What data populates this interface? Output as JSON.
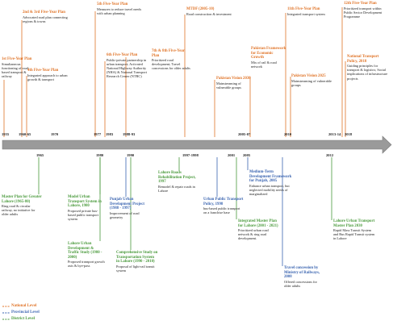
{
  "timeline_years": [
    "1955",
    "1960-65",
    "1970",
    "1977",
    "1983",
    "1988-93",
    "2005-07",
    "2010",
    "2013-14",
    "2018"
  ],
  "bottom_years": [
    "1965",
    "1980",
    "1990",
    "1997-1998",
    "2001",
    "2005",
    "2012"
  ],
  "national": [
    {
      "title": "1st Five-Year Plan",
      "desc": "Simultaneous functioning of road-based transport & railway"
    },
    {
      "title": "2nd & 3rd Five-Year Plan",
      "desc": "Advocated road plan connecting regions & towns"
    },
    {
      "title": "4th Five-Year Plan",
      "desc": "Integrated approach to urban growth & transport"
    },
    {
      "title": "5th Five-Year Plan",
      "desc": "Measures to reduce travel needs with urban planning"
    },
    {
      "title": "6th Five-Year Plan",
      "desc": "Public-private partnership in urban transport; Activated National Highway Authority (NHA) & National Transport Research Center (NTRC)"
    },
    {
      "title": "7th & 8th Five-Year Plan",
      "desc": "Prioritized road development; Travel concessions for older adults"
    },
    {
      "title": "MTDF (2005-10)",
      "desc": "Road construction & investment"
    },
    {
      "title": "Pakistan Vision 2030",
      "desc": "Mainstreaming of vulnerable groups"
    },
    {
      "title": "Pakistan Framework for Economic Growth",
      "desc": "Mix of rail & road network"
    },
    {
      "title": "11th Five-Year Plan",
      "desc": "Integrated transport system"
    },
    {
      "title": "Pakistan Vision 2025",
      "desc": "Mainstreaming of vulnerable groups"
    },
    {
      "title": "12th Five-Year Plan",
      "desc": "Prioritized transport within Public Sector Development Programme"
    },
    {
      "title": "National Transport Policy, 2018",
      "desc": "Guiding principles for transport & logistics; Social implications of infrastructure projects"
    }
  ],
  "district": [
    {
      "title": "Master Plan for Greater Lahore (1965-80)",
      "desc": "Ring road & circular railway, no initiative for older adults"
    },
    {
      "title": "Model Urban Transport System in Lahore, 1980",
      "desc": "Proposed private bus-based public transport system"
    },
    {
      "title": "Lahore Urban Development & Traffic Study (1980 - 2000)",
      "desc": "Proposed transport growth axis & bye-pass"
    },
    {
      "title": "Comprehensive Study on Transportation System in Lahore (1990 - 2010)",
      "desc": "Proposal of light-rail transit system"
    },
    {
      "title": "Lahore Roads Rehabilitation Project, 1997",
      "desc": "Remodel & repair roads in Lahore"
    },
    {
      "title": "Integrated Master Plan for Lahore (2001 - 2021)",
      "desc": "Prioritized urban road network & ring road development."
    },
    {
      "title": "Lahore Urban Transport Master Plan 2030",
      "desc": "Rapid Mass Transit System and Bus Rapid Transit system in Lahore"
    }
  ],
  "provincial": [
    {
      "title": "Punjab Urban Development Project (1988 - 1997)",
      "desc": "Improvement of road geometry"
    },
    {
      "title": "Urban Public Transport Policy, 1998",
      "desc": "bus-based public transport on a franchise base"
    },
    {
      "title": "Medium-Term Development Framework for Punjab, 2005",
      "desc": "Enhance urban transport, but neglected mobility needs of marginalized"
    },
    {
      "title": "Travel concession by Ministry of Railways, 2008",
      "desc": "Offered concessions for older adults"
    }
  ],
  "legend": [
    "National Level",
    "Provincial Level",
    "District Level"
  ],
  "colors": {
    "national": "#e07428",
    "provincial": "#3a64b0",
    "district": "#4a9a3c",
    "arrow": "#9a9a9a"
  }
}
